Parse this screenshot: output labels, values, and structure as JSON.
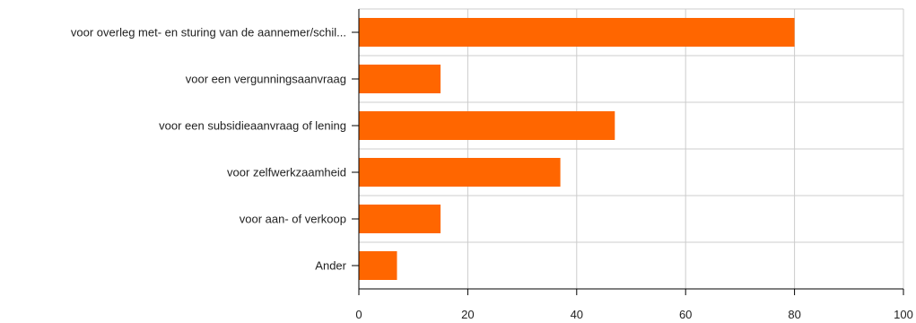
{
  "chart_data": {
    "type": "bar",
    "orientation": "horizontal",
    "categories": [
      "voor overleg met- en sturing van de aannemer/schil...",
      "voor een vergunningsaanvraag",
      "voor een subsidieaanvraag of lening",
      "voor zelfwerkzaamheid",
      "voor aan- of verkoop",
      "Ander"
    ],
    "values": [
      80,
      15,
      47,
      37,
      15,
      7
    ],
    "xlim": [
      0,
      100
    ],
    "xticks": [
      0,
      20,
      40,
      60,
      80,
      100
    ],
    "grid": true,
    "bar_color": "#ff6600",
    "grid_color": "#cccccc",
    "title": "",
    "xlabel": "",
    "ylabel": ""
  }
}
